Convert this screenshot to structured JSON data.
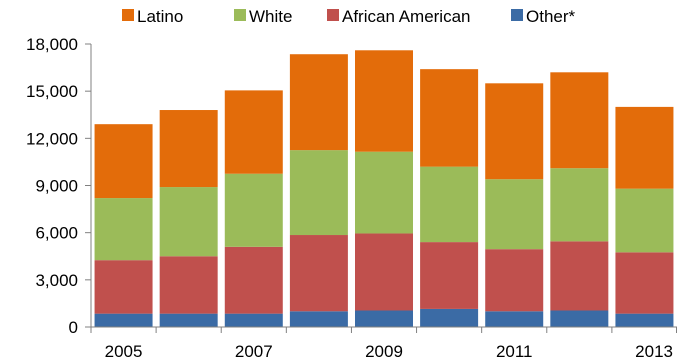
{
  "chart_data": {
    "type": "bar",
    "stacked": true,
    "categories": [
      "2005",
      "2006",
      "2007",
      "2008",
      "2009",
      "2010",
      "2011",
      "2012",
      "2013"
    ],
    "x_tick_labels": [
      "2005",
      "",
      "2007",
      "",
      "2009",
      "",
      "2011",
      "",
      "2013"
    ],
    "series": [
      {
        "name": "Other*",
        "color": "#3B6BA5",
        "values": [
          850,
          850,
          850,
          1000,
          1050,
          1150,
          1000,
          1050,
          850
        ]
      },
      {
        "name": "African American",
        "color": "#C0504D",
        "values": [
          3400,
          3650,
          4250,
          4850,
          4900,
          4250,
          3950,
          4400,
          3900
        ]
      },
      {
        "name": "White",
        "color": "#9BBB59",
        "values": [
          3950,
          4400,
          4650,
          5400,
          5200,
          4800,
          4450,
          4650,
          4050
        ]
      },
      {
        "name": "Latino",
        "color": "#E36C0A",
        "values": [
          4700,
          4900,
          5300,
          6100,
          6450,
          6200,
          6100,
          6100,
          5200
        ]
      }
    ],
    "legend_order": [
      "Latino",
      "White",
      "African American",
      "Other*"
    ],
    "legend_position": "top",
    "ylim": [
      0,
      18000
    ],
    "y_ticks": [
      0,
      3000,
      6000,
      9000,
      12000,
      15000,
      18000
    ],
    "y_tick_labels": [
      "0",
      "3,000",
      "6,000",
      "9,000",
      "12,000",
      "15,000",
      "18,000"
    ],
    "grid": false
  }
}
